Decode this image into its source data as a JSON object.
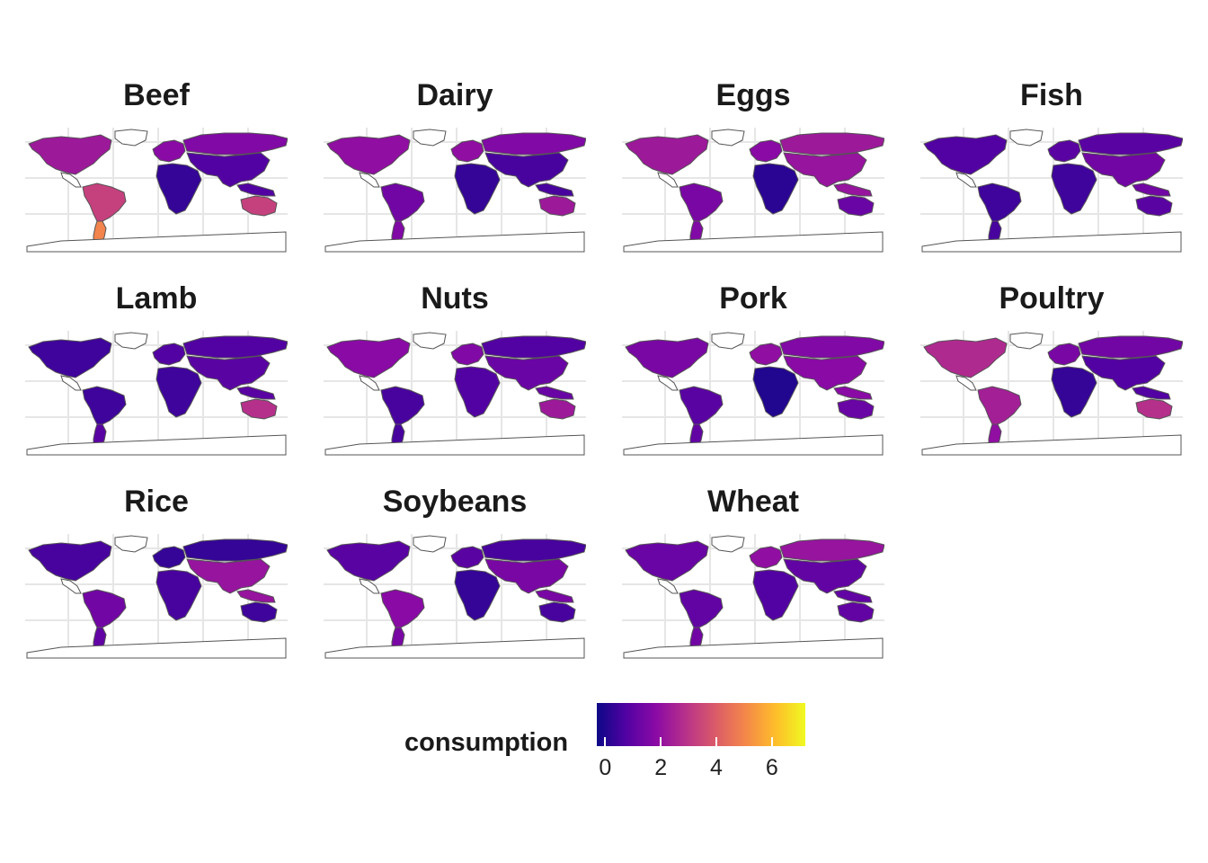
{
  "chart_data": {
    "type": "choropleth-facets",
    "panels": [
      {
        "title": "Beef",
        "shade": {
          "na": 0.34,
          "sa": 0.48,
          "sa_south": 0.7,
          "eu": 0.28,
          "ru": 0.26,
          "asia": 0.14,
          "af": 0.08,
          "au": 0.48
        }
      },
      {
        "title": "Dairy",
        "shade": {
          "na": 0.3,
          "sa": 0.22,
          "sa_south": 0.26,
          "eu": 0.3,
          "ru": 0.26,
          "asia": 0.12,
          "af": 0.08,
          "au": 0.34
        }
      },
      {
        "title": "Eggs",
        "shade": {
          "na": 0.34,
          "sa": 0.24,
          "sa_south": 0.26,
          "eu": 0.28,
          "ru": 0.34,
          "asia": 0.32,
          "af": 0.06,
          "au": 0.2
        }
      },
      {
        "title": "Fish",
        "shade": {
          "na": 0.14,
          "sa": 0.1,
          "sa_south": 0.12,
          "eu": 0.16,
          "ru": 0.16,
          "asia": 0.22,
          "af": 0.1,
          "au": 0.16
        }
      },
      {
        "title": "Lamb",
        "shade": {
          "na": 0.1,
          "sa": 0.1,
          "sa_south": 0.16,
          "eu": 0.14,
          "ru": 0.14,
          "asia": 0.16,
          "af": 0.1,
          "au": 0.42
        }
      },
      {
        "title": "Nuts",
        "shade": {
          "na": 0.28,
          "sa": 0.12,
          "sa_south": 0.12,
          "eu": 0.26,
          "ru": 0.14,
          "asia": 0.2,
          "af": 0.14,
          "au": 0.34
        }
      },
      {
        "title": "Pork",
        "shade": {
          "na": 0.24,
          "sa": 0.16,
          "sa_south": 0.18,
          "eu": 0.3,
          "ru": 0.26,
          "asia": 0.28,
          "af": 0.04,
          "au": 0.2
        }
      },
      {
        "title": "Poultry",
        "shade": {
          "na": 0.4,
          "sa": 0.36,
          "sa_south": 0.3,
          "eu": 0.24,
          "ru": 0.22,
          "asia": 0.14,
          "af": 0.08,
          "au": 0.42
        }
      },
      {
        "title": "Rice",
        "shade": {
          "na": 0.12,
          "sa": 0.22,
          "sa_south": 0.18,
          "eu": 0.08,
          "ru": 0.08,
          "asia": 0.32,
          "af": 0.12,
          "au": 0.1
        }
      },
      {
        "title": "Soybeans",
        "shade": {
          "na": 0.16,
          "sa": 0.28,
          "sa_south": 0.24,
          "eu": 0.16,
          "ru": 0.12,
          "asia": 0.24,
          "af": 0.08,
          "au": 0.12
        }
      },
      {
        "title": "Wheat",
        "shade": {
          "na": 0.2,
          "sa": 0.18,
          "sa_south": 0.22,
          "eu": 0.3,
          "ru": 0.32,
          "asia": 0.18,
          "af": 0.14,
          "au": 0.18
        }
      }
    ],
    "legend": {
      "title": "consumption",
      "ticks": [
        0,
        2,
        4,
        6
      ],
      "range": [
        -0.3,
        7.2
      ],
      "palette": [
        "#0d0887",
        "#5302a3",
        "#8b0aa5",
        "#b83289",
        "#db5c68",
        "#f48849",
        "#febd2a",
        "#f0f921"
      ]
    },
    "grid": true
  }
}
